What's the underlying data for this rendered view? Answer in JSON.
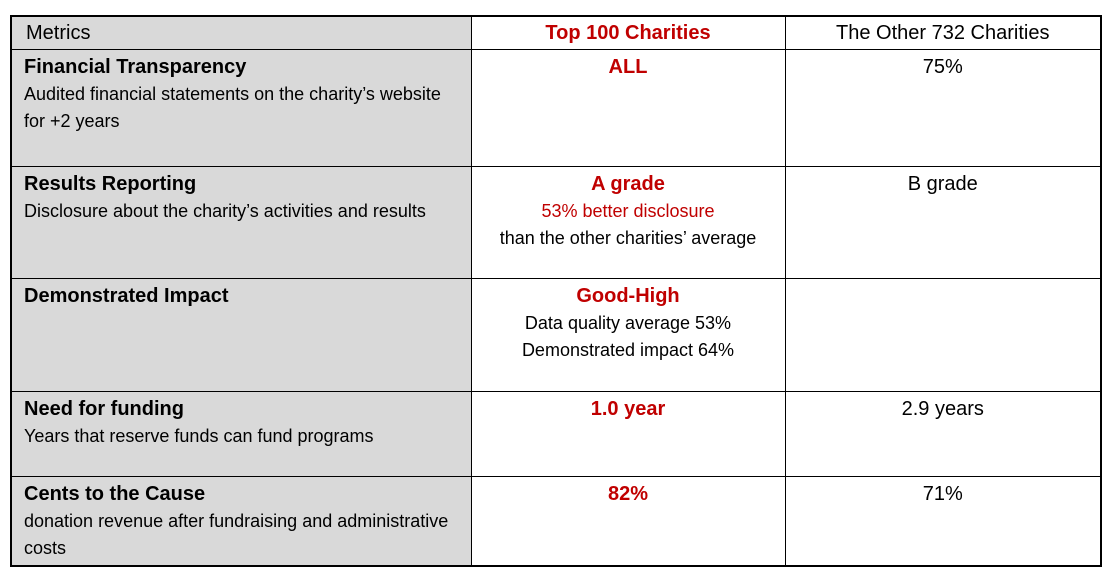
{
  "colors": {
    "accent_red": "#C00000",
    "metric_col_bg": "#D9D9D9",
    "border_color": "#000000",
    "page_bg": "#FFFFFF"
  },
  "table": {
    "columns": [
      {
        "label": "Metrics"
      },
      {
        "label": "Top 100 Charities"
      },
      {
        "label": "The Other 732 Charities"
      }
    ],
    "rows": [
      {
        "title": "Financial Transparency",
        "description": "Audited financial statements on the charity’s website for +2 years",
        "top100": {
          "headline": "ALL",
          "detail1": "",
          "detail2": ""
        },
        "others": "75%"
      },
      {
        "title": "Results Reporting",
        "description": "Disclosure about the charity’s activities and results",
        "top100": {
          "headline": "A grade",
          "detail1": "53% better disclosure",
          "detail2": "than the other charities’ average"
        },
        "others": "B grade"
      },
      {
        "title": "Demonstrated Impact",
        "description": "",
        "top100": {
          "headline": "Good-High",
          "detail1": "Data quality average 53%",
          "detail2": "Demonstrated impact 64%"
        },
        "others": ""
      },
      {
        "title": "Need for funding",
        "description": "Years that reserve funds can fund programs",
        "top100": {
          "headline": "1.0 year",
          "detail1": "",
          "detail2": ""
        },
        "others": "2.9 years"
      },
      {
        "title": "Cents to the Cause",
        "description": "donation revenue after fundraising and administrative costs",
        "top100": {
          "headline": "82%",
          "detail1": "",
          "detail2": ""
        },
        "others": "71%"
      }
    ]
  }
}
